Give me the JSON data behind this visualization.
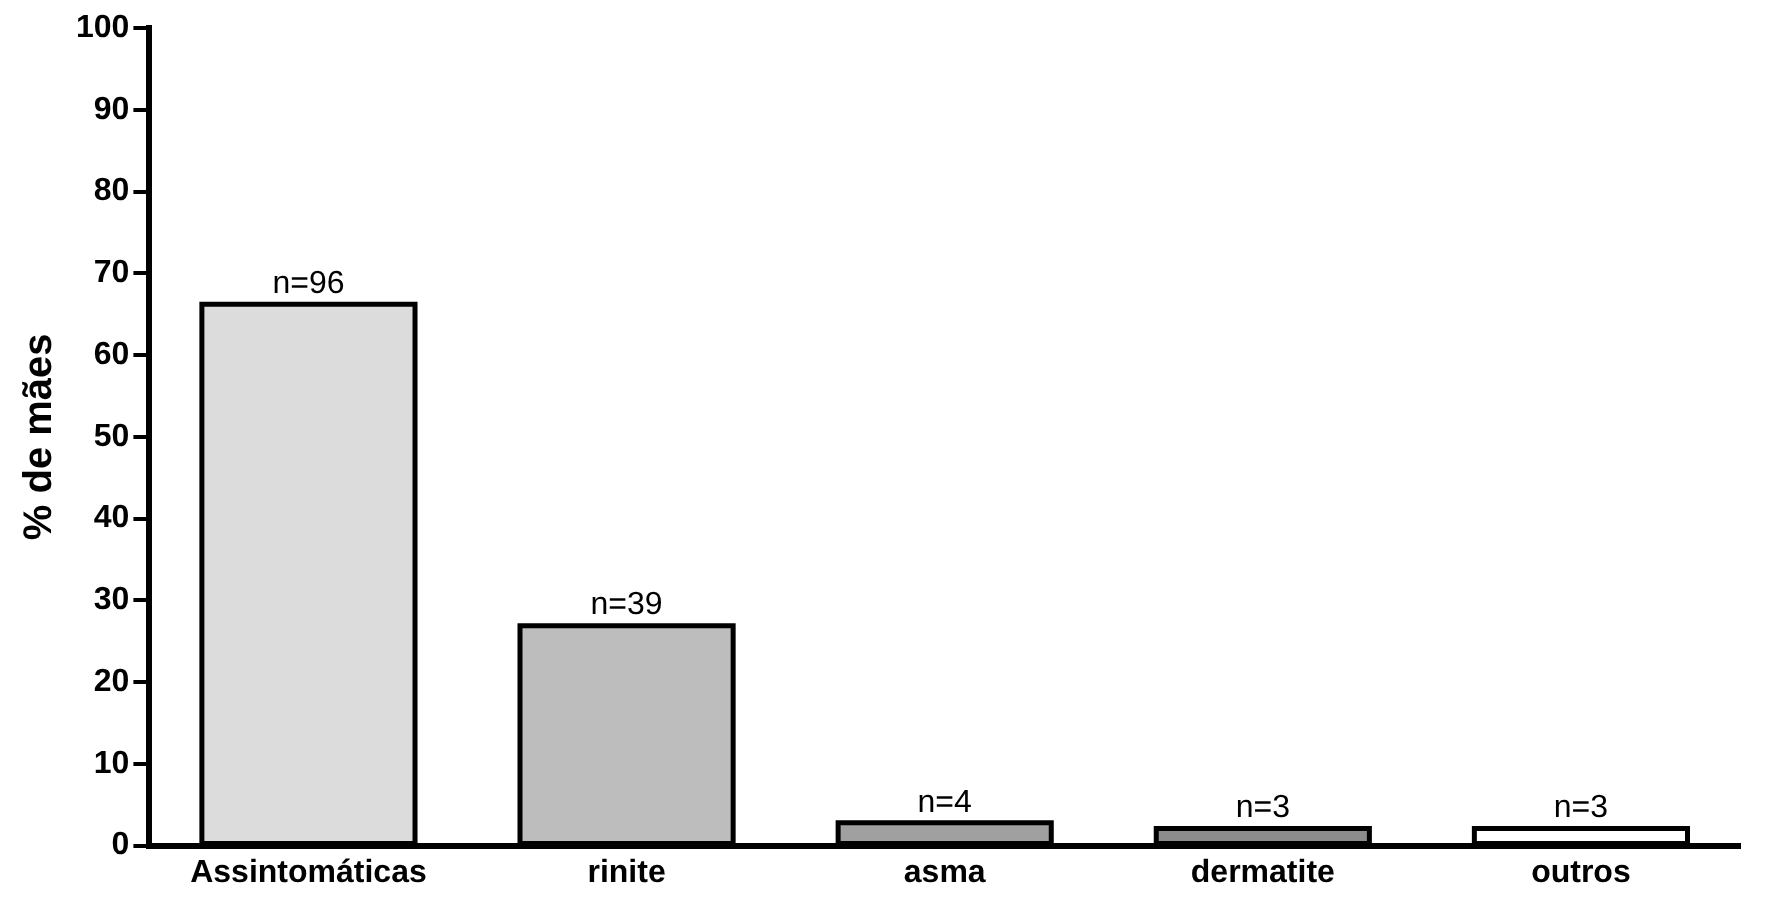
{
  "chart_data": {
    "type": "bar",
    "ylabel": "% de mães",
    "categories": [
      "Assintomáticas",
      "rinite",
      "asma",
      "dermatite",
      "outros"
    ],
    "values": [
      66.2,
      26.9,
      2.8,
      2.1,
      2.1
    ],
    "colors": [
      "#dcdcdc",
      "#bdbdbd",
      "#a0a0a0",
      "#8c8c8c",
      "#ffffff"
    ],
    "annotations": [
      {
        "text": "n=96",
        "x": "Assintomáticas",
        "y": 66.2
      },
      {
        "text": "n=39",
        "x": "rinite",
        "y": 26.9
      },
      {
        "text": "n=4",
        "x": "asma",
        "y": 2.8
      },
      {
        "text": "n=3",
        "x": "dermatite",
        "y": 2.1
      },
      {
        "text": "n=3",
        "x": "outros",
        "y": 2.1
      }
    ],
    "ylim": [
      0,
      100
    ],
    "yticks": [
      0,
      10,
      20,
      30,
      40,
      50,
      60,
      70,
      80,
      90,
      100
    ],
    "grid": false,
    "legend": false
  }
}
